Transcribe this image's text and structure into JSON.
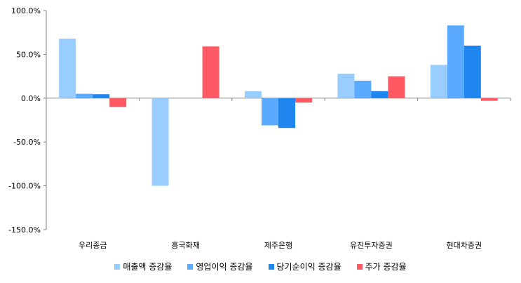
{
  "chart_data": {
    "type": "bar",
    "categories": [
      "우리종금",
      "흥국화재",
      "제주은행",
      "유진투자증권",
      "현대차증권"
    ],
    "series": [
      {
        "name": "매출액 증감율",
        "color": "#99ccff",
        "values": [
          68,
          -100,
          8,
          28,
          38
        ]
      },
      {
        "name": "영업이익 증감율",
        "color": "#5aabff",
        "values": [
          5,
          0,
          -31,
          20,
          83
        ]
      },
      {
        "name": "당기순이익 증감율",
        "color": "#1f86f0",
        "values": [
          4.5,
          0,
          -34,
          8,
          60
        ]
      },
      {
        "name": "주가 증감율",
        "color": "#ff5a63",
        "values": [
          -10,
          59,
          -5,
          25,
          -3
        ]
      }
    ],
    "ylim": [
      -150,
      100
    ],
    "yticks": [
      "100.0%",
      "50.0%",
      "0.0%",
      "-50.0%",
      "-100.0%",
      "-150.0%"
    ],
    "ytick_values": [
      100,
      50,
      0,
      -50,
      -100,
      -150
    ],
    "grid": false,
    "legend_position": "bottom"
  }
}
